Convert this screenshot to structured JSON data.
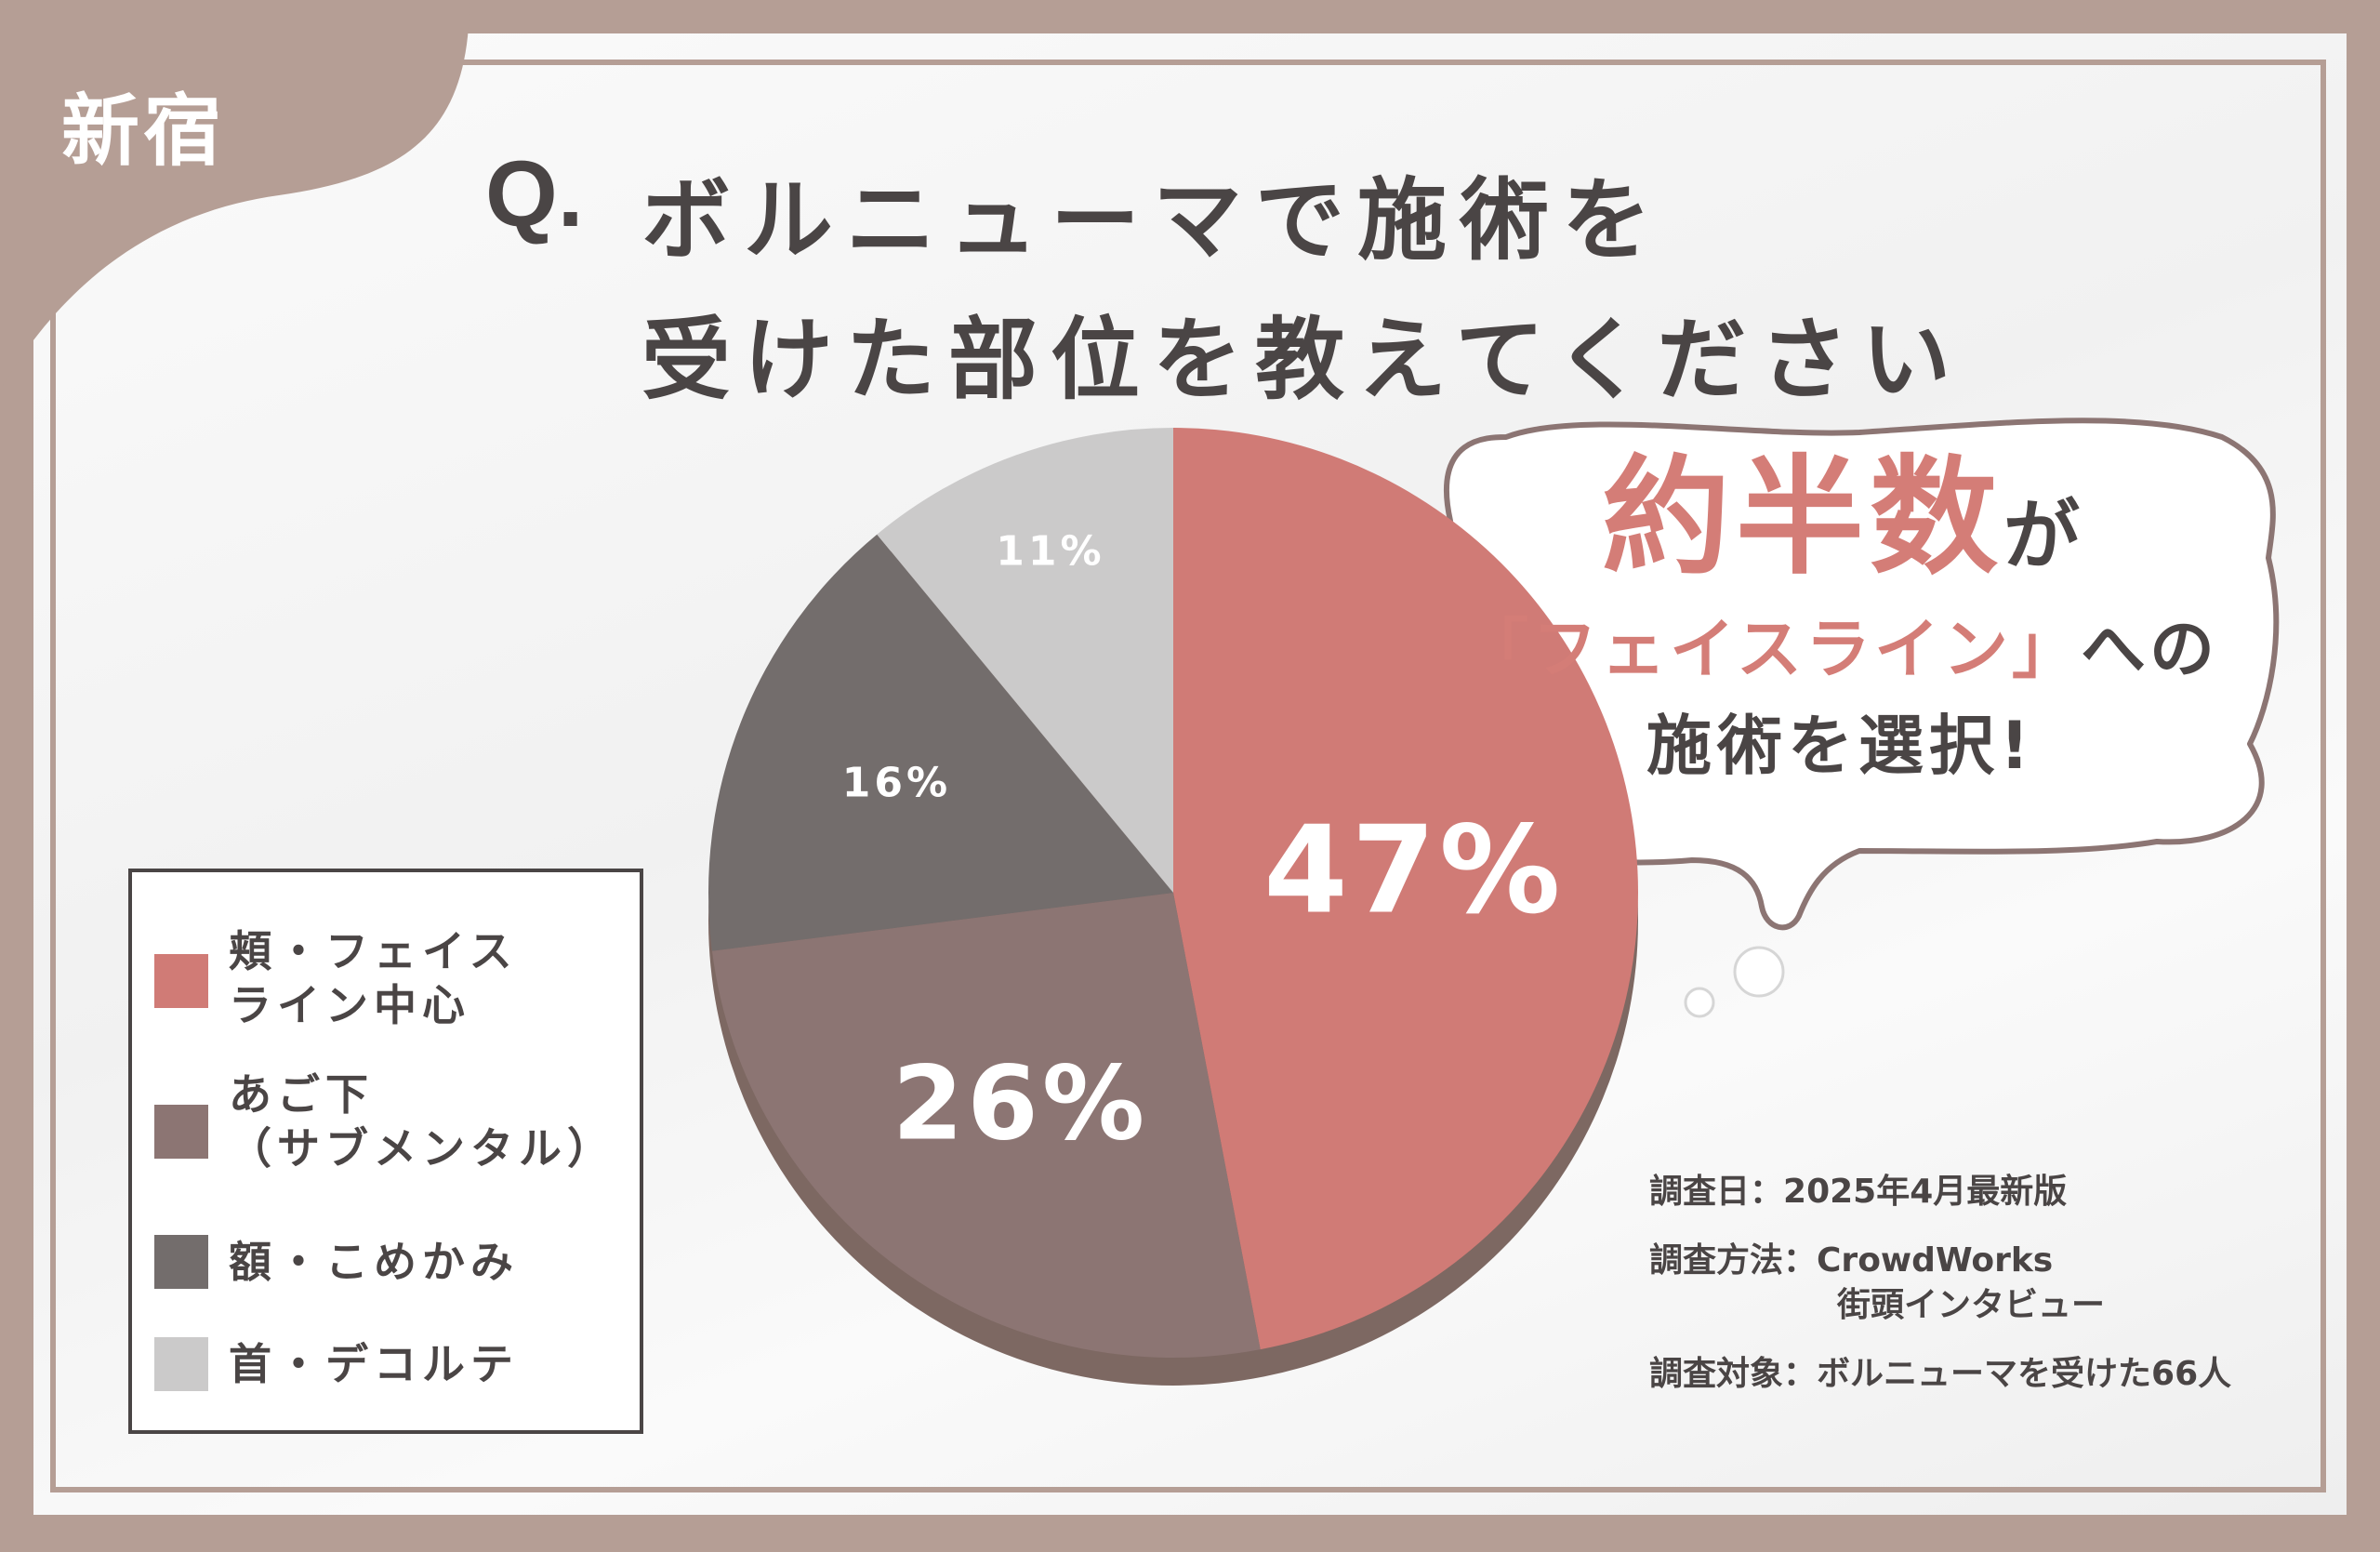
{
  "location_tag": "新宿",
  "question": {
    "mark": "Q.",
    "text_line1": "ボルニューマで施術を",
    "text_line2": "受けた部位を教えてください"
  },
  "callout": {
    "highlight": "約半数",
    "after_highlight": "が",
    "line2_highlight": "「フェイスライン」",
    "line2_after": "への",
    "line3": "施術を選択!"
  },
  "chart_data": {
    "type": "pie",
    "title": "",
    "slices": [
      {
        "label": "頬・フェイスライン中心",
        "value": 47,
        "display": "47%",
        "color": "#d07b76"
      },
      {
        "label": "あご下（サブメンタル）",
        "value": 26,
        "display": "26%",
        "color": "#8c7573"
      },
      {
        "label": "額・こめかみ",
        "value": 16,
        "display": "16%",
        "color": "#736d6c"
      },
      {
        "label": "首・デコルテ",
        "value": 11,
        "display": "11%",
        "color": "#cbcaca"
      }
    ],
    "legend_placement": "bottom-left",
    "start": "top, clockwise"
  },
  "legend": {
    "items": [
      {
        "line1": "頬・フェイス",
        "line2": "ライン中心"
      },
      {
        "line1": "あご下",
        "line2": "（サブメンタル）"
      },
      {
        "line1": "額・こめかみ",
        "line2": ""
      },
      {
        "line1": "首・デコルテ",
        "line2": ""
      }
    ]
  },
  "survey": {
    "date_label": "調査日：",
    "date_value": "2025年4月最新版",
    "method_label": "調査方法：",
    "method_value1": "CrowdWorks",
    "method_value2": "街頭インタビュー",
    "target_label": "調査対象：",
    "target_value": "ボルニューマを受けた66人"
  },
  "colors": {
    "frame": "#b59e95",
    "accent": "#d47d77",
    "text": "#4a4545"
  }
}
